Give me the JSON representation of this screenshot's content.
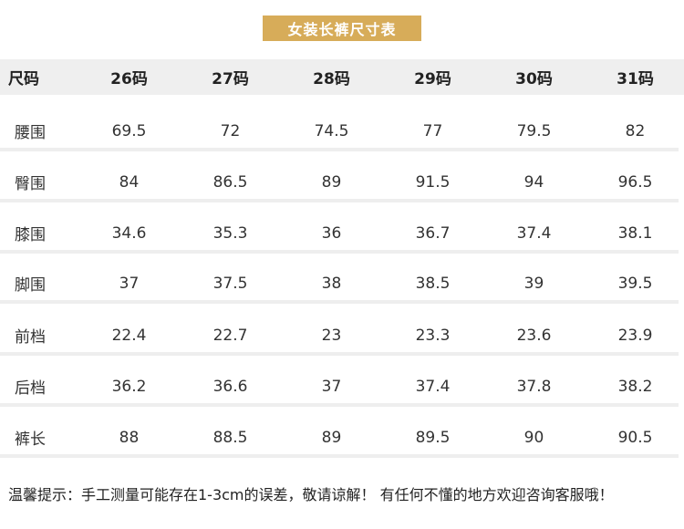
{
  "title": "女装长裤尺寸表",
  "table": {
    "header": {
      "label": "尺码",
      "sizes": [
        "26码",
        "27码",
        "28码",
        "29码",
        "30码",
        "31码"
      ]
    },
    "rows": [
      {
        "label": "腰围",
        "values": [
          "69.5",
          "72",
          "74.5",
          "77",
          "79.5",
          "82"
        ]
      },
      {
        "label": "臀围",
        "values": [
          "84",
          "86.5",
          "89",
          "91.5",
          "94",
          "96.5"
        ]
      },
      {
        "label": "膝围",
        "values": [
          "34.6",
          "35.3",
          "36",
          "36.7",
          "37.4",
          "38.1"
        ]
      },
      {
        "label": "脚围",
        "values": [
          "37",
          "37.5",
          "38",
          "38.5",
          "39",
          "39.5"
        ]
      },
      {
        "label": "前档",
        "values": [
          "22.4",
          "22.7",
          "23",
          "23.3",
          "23.6",
          "23.9"
        ]
      },
      {
        "label": "后档",
        "values": [
          "36.2",
          "36.6",
          "37",
          "37.4",
          "37.8",
          "38.2"
        ]
      },
      {
        "label": "裤长",
        "values": [
          "88",
          "88.5",
          "89",
          "89.5",
          "90",
          "90.5"
        ]
      }
    ]
  },
  "footer_note": "温馨提示：手工测量可能存在1-3cm的误差，敬请谅解！ 有任何不懂的地方欢迎咨询客服哦！",
  "colors": {
    "title_background": "#d7ac59",
    "header_background": "#efefef",
    "row_divider": "#eeeeee"
  }
}
